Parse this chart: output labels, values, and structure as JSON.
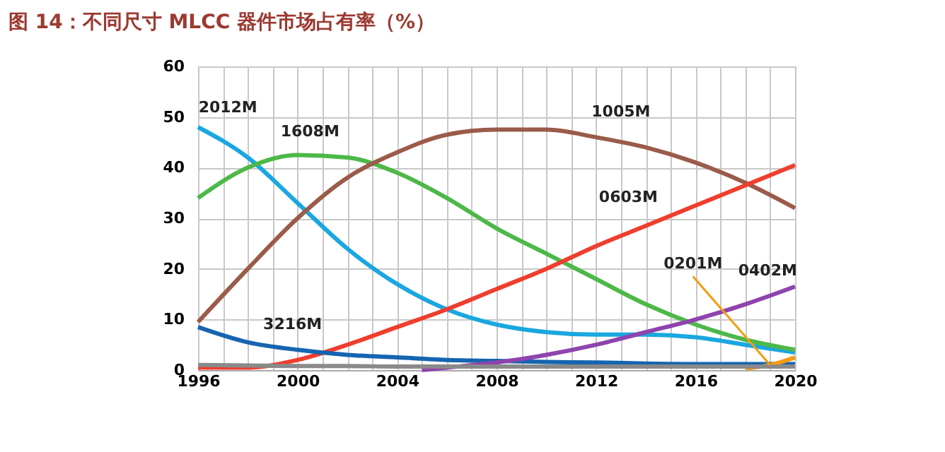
{
  "chart_data": {
    "type": "line",
    "title": "图 14：不同尺寸 MLCC 器件市场占有率（%）",
    "x": [
      1996,
      1998,
      2000,
      2002,
      2004,
      2006,
      2008,
      2010,
      2012,
      2014,
      2016,
      2018,
      2020
    ],
    "series": [
      {
        "name": "2012M",
        "color": "#1aa7e0",
        "values": [
          48,
          42,
          33,
          24,
          17,
          12,
          9,
          7.5,
          7,
          7,
          6.5,
          5,
          3.5
        ]
      },
      {
        "name": "1608M",
        "color": "#4db848",
        "values": [
          34,
          40,
          42.5,
          42,
          39,
          34,
          28,
          23,
          18,
          13,
          9,
          6,
          4
        ]
      },
      {
        "name": "1005M",
        "color": "#9b5b4a",
        "values": [
          9.5,
          20,
          30,
          38,
          43,
          46.5,
          47.5,
          47.5,
          46,
          44,
          41,
          37,
          32
        ]
      },
      {
        "name": "0603M",
        "color": "#ef3e2e",
        "values": [
          0.5,
          0.5,
          2,
          5,
          8.5,
          12,
          16,
          20,
          24.5,
          28.5,
          32.5,
          36.5,
          40.5
        ]
      },
      {
        "name": "3216M",
        "color": "#1565b0",
        "values": [
          8.5,
          5.5,
          4,
          3,
          2.5,
          2,
          1.8,
          1.6,
          1.5,
          1.3,
          1.2,
          1.2,
          1.2
        ]
      },
      {
        "name": "0402M",
        "color": "#8e44ad",
        "x": [
          2005,
          2006,
          2008,
          2010,
          2012,
          2014,
          2016,
          2018,
          2020
        ],
        "values": [
          0,
          0.5,
          1.5,
          3,
          5,
          7.5,
          10,
          13,
          16.5
        ]
      },
      {
        "name": "0201M",
        "color": "#f39c12",
        "x": [
          2018,
          2019,
          2020
        ],
        "values": [
          0.3,
          1,
          2.5
        ]
      },
      {
        "color": "#8a8a8a",
        "values": [
          1,
          0.9,
          0.8,
          0.8,
          0.7,
          0.7,
          0.7,
          0.7,
          0.7,
          0.7,
          0.7,
          0.7,
          0.7
        ]
      }
    ],
    "xlim": [
      1996,
      2020
    ],
    "xticks": [
      1996,
      {
        "value": 1997,
        "label": null
      },
      {
        "value": 1998,
        "label": null
      },
      {
        "value": 1999,
        "label": null
      },
      2000,
      {
        "value": 2001,
        "label": null
      },
      {
        "value": 2002,
        "label": null
      },
      {
        "value": 2003,
        "label": null
      },
      2004,
      {
        "value": 2005,
        "label": null
      },
      {
        "value": 2006,
        "label": null
      },
      {
        "value": 2007,
        "label": null
      },
      2008,
      {
        "value": 2009,
        "label": null
      },
      {
        "value": 2010,
        "label": null
      },
      {
        "value": 2011,
        "label": null
      },
      2012,
      {
        "value": 2013,
        "label": null
      },
      {
        "value": 2014,
        "label": null
      },
      {
        "value": 2015,
        "label": null
      },
      2016,
      {
        "value": 2017,
        "label": null
      },
      {
        "value": 2018,
        "label": null
      },
      {
        "value": 2019,
        "label": null
      },
      2020
    ],
    "ylim": [
      0,
      60
    ],
    "yticks": [
      0,
      10,
      20,
      30,
      40,
      50,
      60
    ],
    "grid": true,
    "legend": false,
    "marker": "none",
    "line_style": "solid"
  }
}
